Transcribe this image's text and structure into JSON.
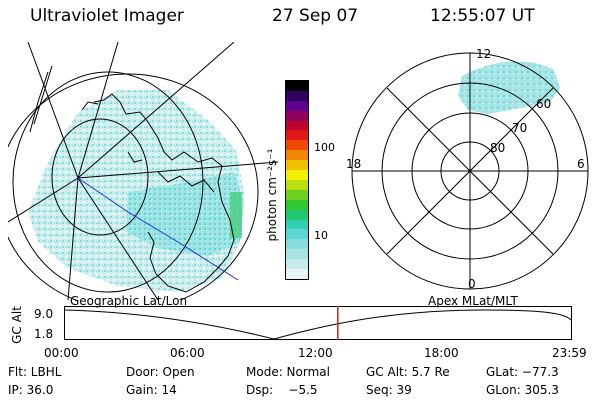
{
  "header": {
    "instrument": "Ultraviolet Imager",
    "date": "27 Sep 07",
    "time": "12:55:07 UT"
  },
  "colorbar": {
    "unit_label": "photon cm⁻²s⁻¹",
    "ticks": [
      "100",
      "10"
    ],
    "colors": [
      "#e8f4f4",
      "#c8ecec",
      "#a8e4e4",
      "#88dcdc",
      "#5ed4d4",
      "#30d0b0",
      "#20c870",
      "#30c830",
      "#70d020",
      "#b8e010",
      "#f0f000",
      "#f0c000",
      "#f08800",
      "#f04800",
      "#e01818",
      "#c00030",
      "#900060",
      "#600090",
      "#300060",
      "#000000"
    ]
  },
  "left_panel": {
    "caption": "Geographic Lat/Lon"
  },
  "right_panel": {
    "caption": "Apex MLat/MLT",
    "hour_labels": {
      "top": "12",
      "left": "18",
      "right": "6",
      "bottom": "0"
    },
    "lat_labels": [
      "60",
      "70",
      "80"
    ]
  },
  "timeline": {
    "ylabel": "GC Alt",
    "yticks": [
      "9.0",
      "1.8"
    ],
    "xticks": [
      "00:00",
      "06:00",
      "12:00",
      "18:00",
      "23:59"
    ],
    "current_fraction": 0.539,
    "marker_color": "#d02020"
  },
  "footer": {
    "row1": [
      "Flt: LBHL",
      "Door: Open",
      "Mode: Normal",
      "GC Alt: 5.7 Re",
      "GLat: −77.3"
    ],
    "row2": [
      "IP: 36.0",
      "Gain: 14",
      "Dsp:    −5.5",
      "Seq: 39",
      "GLon: 305.3"
    ]
  }
}
